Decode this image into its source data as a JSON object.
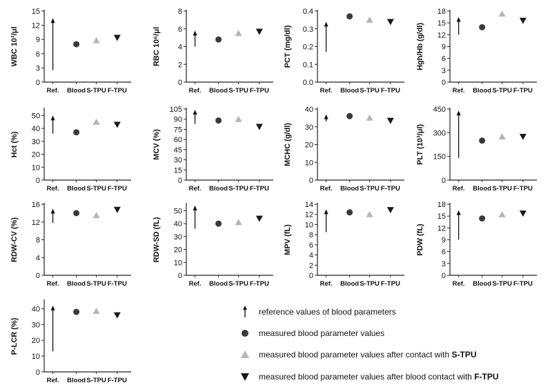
{
  "chart_data": [
    {
      "type": "scatter",
      "ylabel": "WBC 10³/μl",
      "ylim": [
        0,
        15
      ],
      "yticks": [
        0,
        3,
        6,
        9,
        12,
        15
      ],
      "categories": [
        "Ref.",
        "Blood",
        "S-TPU",
        "F-TPU"
      ],
      "reference_range": [
        2.5,
        13.5
      ],
      "blood": 8.0,
      "s_tpu": 8.8,
      "f_tpu": 9.4
    },
    {
      "type": "scatter",
      "ylabel": "RBC 10⁶/μl",
      "ylim": [
        0,
        8
      ],
      "yticks": [
        0,
        2,
        4,
        6,
        8
      ],
      "categories": [
        "Ref.",
        "Blood",
        "S-TPU",
        "F-TPU"
      ],
      "reference_range": [
        4.0,
        5.8
      ],
      "blood": 4.8,
      "s_tpu": 5.5,
      "f_tpu": 5.7
    },
    {
      "type": "scatter",
      "ylabel": "PCT (mg/dl)",
      "ylim": [
        0,
        0.4
      ],
      "yticks": [
        "0.0",
        "0.1",
        "0.2",
        "0.3",
        "0.4"
      ],
      "categories": [
        "Ref.",
        "Blood",
        "S-TPU",
        "F-TPU"
      ],
      "reference_range": [
        0.17,
        0.34
      ],
      "blood": 0.37,
      "s_tpu": 0.35,
      "f_tpu": 0.34
    },
    {
      "type": "scatter",
      "ylabel": "Hgh/Hb (g/dl)",
      "ylim": [
        0,
        18
      ],
      "yticks": [
        0,
        3,
        6,
        9,
        12,
        15,
        18
      ],
      "categories": [
        "Ref.",
        "Blood",
        "S-TPU",
        "F-TPU"
      ],
      "reference_range": [
        12.0,
        16.5
      ],
      "blood": 13.9,
      "s_tpu": 17.3,
      "f_tpu": 15.6
    },
    {
      "type": "scatter",
      "ylabel": "Hct (%)",
      "ylim": [
        0,
        55
      ],
      "yticks": [
        0,
        10,
        20,
        30,
        40,
        50
      ],
      "categories": [
        "Ref.",
        "Blood",
        "S-TPU",
        "F-TPU"
      ],
      "reference_range": [
        36,
        50
      ],
      "blood": 37,
      "s_tpu": 45,
      "f_tpu": 43
    },
    {
      "type": "scatter",
      "ylabel": "MCV (%)",
      "ylim": [
        0,
        105
      ],
      "yticks": [
        0,
        15,
        30,
        45,
        60,
        75,
        90,
        105
      ],
      "categories": [
        "Ref.",
        "Blood",
        "S-TPU",
        "F-TPU"
      ],
      "reference_range": [
        83,
        104
      ],
      "blood": 88,
      "s_tpu": 90,
      "f_tpu": 79
    },
    {
      "type": "scatter",
      "ylabel": "MCHC (g/dl)",
      "ylim": [
        0,
        40
      ],
      "yticks": [
        0,
        10,
        20,
        30,
        40
      ],
      "categories": [
        "Ref.",
        "Blood",
        "S-TPU",
        "F-TPU"
      ],
      "reference_range": [
        33,
        37
      ],
      "blood": 36,
      "s_tpu": 35,
      "f_tpu": 33.5
    },
    {
      "type": "scatter",
      "ylabel": "PLT (10³/μl)",
      "ylim": [
        0,
        450
      ],
      "yticks": [
        0,
        150,
        300,
        450
      ],
      "categories": [
        "Ref.",
        "Blood",
        "S-TPU",
        "F-TPU"
      ],
      "reference_range": [
        140,
        440
      ],
      "blood": 250,
      "s_tpu": 275,
      "f_tpu": 275
    },
    {
      "type": "scatter",
      "ylabel": "RDW-CV (%)",
      "ylim": [
        0,
        16
      ],
      "yticks": [
        0,
        4,
        8,
        12,
        16
      ],
      "categories": [
        "Ref.",
        "Blood",
        "S-TPU",
        "F-TPU"
      ],
      "reference_range": [
        11.8,
        15.0
      ],
      "blood": 14.0,
      "s_tpu": 13.5,
      "f_tpu": 14.8
    },
    {
      "type": "scatter",
      "ylabel": "RDW-SD (fL)",
      "ylim": [
        0,
        55
      ],
      "yticks": [
        0,
        10,
        20,
        30,
        40,
        50
      ],
      "categories": [
        "Ref.",
        "Blood",
        "S-TPU",
        "F-TPU"
      ],
      "reference_range": [
        36,
        54
      ],
      "blood": 40,
      "s_tpu": 41,
      "f_tpu": 44
    },
    {
      "type": "scatter",
      "ylabel": "MPV (fL)",
      "ylim": [
        0,
        14
      ],
      "yticks": [
        0,
        2,
        4,
        6,
        8,
        10,
        12,
        14
      ],
      "categories": [
        "Ref.",
        "Blood",
        "S-TPU",
        "F-TPU"
      ],
      "reference_range": [
        8.5,
        13.0
      ],
      "blood": 12.4,
      "s_tpu": 12.0,
      "f_tpu": 12.9
    },
    {
      "type": "scatter",
      "ylabel": "PDW (fL)",
      "ylim": [
        0,
        18
      ],
      "yticks": [
        0,
        3,
        6,
        9,
        12,
        15,
        18
      ],
      "categories": [
        "Ref.",
        "Blood",
        "S-TPU",
        "F-TPU"
      ],
      "reference_range": [
        9.0,
        16.5
      ],
      "blood": 14.4,
      "s_tpu": 15.4,
      "f_tpu": 15.7
    },
    {
      "type": "scatter",
      "ylabel": "P-LCR (%)",
      "ylim": [
        0,
        45
      ],
      "yticks": [
        0,
        10,
        20,
        30,
        40
      ],
      "categories": [
        "Ref.",
        "Blood",
        "S-TPU",
        "F-TPU"
      ],
      "reference_range": [
        13,
        42
      ],
      "blood": 38,
      "s_tpu": 38.5,
      "f_tpu": 36
    }
  ],
  "legend": [
    {
      "marker": "arrow",
      "text": "reference values of blood parameters",
      "bold": ""
    },
    {
      "marker": "circle",
      "text": "measured blood parameter values",
      "bold": ""
    },
    {
      "marker": "triangle-up",
      "text": "measured blood parameter values after contact with ",
      "bold": "S-TPU"
    },
    {
      "marker": "triangle-down",
      "text": "measured blood parameter values after blood contact with ",
      "bold": "F-TPU"
    }
  ],
  "colors": {
    "blood": "#3a3a3a",
    "s_tpu": "#b5b5b5",
    "f_tpu": "#1a1a1a",
    "axis": "#222222"
  }
}
